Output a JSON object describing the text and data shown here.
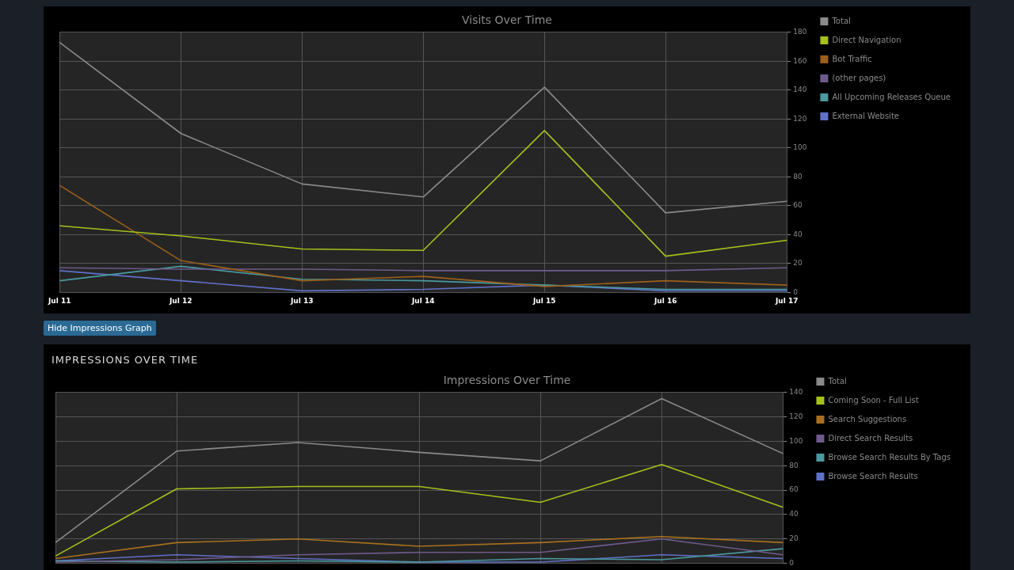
{
  "chart_data": [
    {
      "type": "line",
      "title": "Visits Over Time",
      "categories": [
        "Jul 11",
        "Jul 12",
        "Jul 13",
        "Jul 14",
        "Jul 15",
        "Jul 16",
        "Jul 17"
      ],
      "series": [
        {
          "name": "Total",
          "color": "#8a8a8a",
          "values": [
            173,
            110,
            75,
            66,
            142,
            55,
            63
          ]
        },
        {
          "name": "Direct Navigation",
          "color": "#a4c11c",
          "values": [
            46,
            39,
            30,
            29,
            112,
            25,
            36
          ]
        },
        {
          "name": "Bot Traffic",
          "color": "#9c5f1a",
          "values": [
            74,
            22,
            8,
            11,
            4,
            8,
            5
          ]
        },
        {
          "name": "(other pages)",
          "color": "#6e5a8c",
          "values": [
            17,
            16,
            16,
            15,
            15,
            15,
            17
          ]
        },
        {
          "name": "All Upcoming Releases Queue",
          "color": "#4a9aa0",
          "values": [
            8,
            18,
            9,
            8,
            5,
            2,
            2
          ]
        },
        {
          "name": "External Website",
          "color": "#6070c8",
          "values": [
            15,
            8,
            1,
            2,
            5,
            1,
            1
          ]
        }
      ],
      "ylim": [
        0,
        180
      ],
      "yticks": [
        0,
        20,
        40,
        60,
        80,
        100,
        120,
        140,
        160,
        180
      ],
      "grid": true,
      "legend": "right",
      "marker": "none"
    },
    {
      "type": "line",
      "title": "Impressions Over Time",
      "subtitle": "IMPRESSIONS OVER TIME",
      "annotations": [
        "Hide Impressions Graph"
      ],
      "categories": [
        null,
        null,
        null,
        null,
        null,
        null,
        null
      ],
      "series": [
        {
          "name": "Total",
          "color": "#8a8a8a",
          "values": [
            17,
            92,
            99,
            91,
            84,
            135,
            90
          ]
        },
        {
          "name": "Coming Soon - Full List",
          "color": "#a4c11c",
          "values": [
            6,
            61,
            63,
            63,
            50,
            81,
            46
          ]
        },
        {
          "name": "Search Suggestions",
          "color": "#a8701e",
          "values": [
            4,
            17,
            20,
            14,
            17,
            22,
            17
          ]
        },
        {
          "name": "Direct Search Results",
          "color": "#6e5a8c",
          "values": [
            1,
            3,
            7,
            9,
            9,
            20,
            7
          ]
        },
        {
          "name": "Browse Search Results By Tags",
          "color": "#4a9aa0",
          "values": [
            2,
            1,
            2,
            1,
            4,
            3,
            12
          ]
        },
        {
          "name": "Browse Search Results",
          "color": "#6070c8",
          "values": [
            2,
            7,
            4,
            1,
            1,
            7,
            4
          ]
        }
      ],
      "ylim": [
        0,
        140
      ],
      "yticks": [
        0,
        20,
        40,
        60,
        80,
        100,
        120,
        140
      ],
      "grid": true,
      "legend": "right",
      "marker": "none",
      "tick_labels": "y"
    }
  ]
}
